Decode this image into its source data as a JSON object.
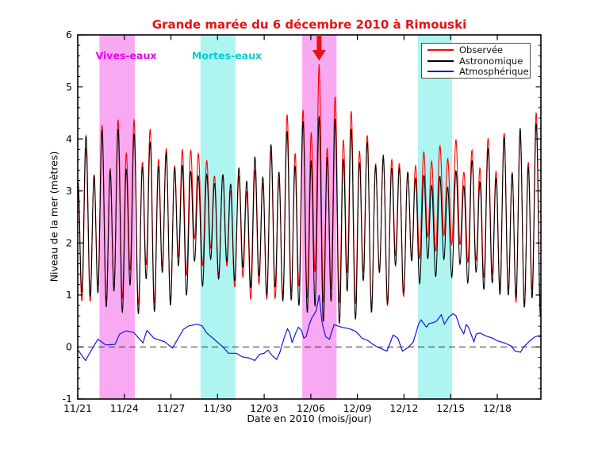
{
  "figure": {
    "title": "Grande marée du 6 décembre 2010 à Rimouski",
    "title_color": "#e81212"
  },
  "chart_data": {
    "type": "line",
    "title": "Grande marée du 6 décembre 2010 à Rimouski",
    "xlabel": "Date en 2010 (mois/jour)",
    "ylabel": "Niveau de la mer (mètres)",
    "ylim": [
      -1,
      6
    ],
    "xlim_days_from_nov21": [
      0,
      29.81
    ],
    "grid": "off",
    "legend_position": "top-right",
    "legend": [
      {
        "name": "Observée",
        "color": "#ff0000"
      },
      {
        "name": "Astronomique",
        "color": "#000000"
      },
      {
        "name": "Atmosphérique",
        "color": "#1414e0"
      }
    ],
    "x_major_ticks": [
      {
        "label": "11/21",
        "day": 0
      },
      {
        "label": "11/24",
        "day": 3
      },
      {
        "label": "11/27",
        "day": 6
      },
      {
        "label": "11/30",
        "day": 9
      },
      {
        "label": "12/03",
        "day": 12
      },
      {
        "label": "12/06",
        "day": 15
      },
      {
        "label": "12/09",
        "day": 18
      },
      {
        "label": "12/12",
        "day": 21
      },
      {
        "label": "12/15",
        "day": 24
      },
      {
        "label": "12/18",
        "day": 27
      }
    ],
    "y_major_ticks": [
      {
        "label": "-1",
        "value": -1
      },
      {
        "label": "0",
        "value": 0
      },
      {
        "label": "1",
        "value": 1
      },
      {
        "label": "2",
        "value": 2
      },
      {
        "label": "3",
        "value": 3
      },
      {
        "label": "4",
        "value": 4
      },
      {
        "label": "5",
        "value": 5
      },
      {
        "label": "6",
        "value": 6
      }
    ],
    "y_minor_step": 0.2,
    "zero_line": {
      "value": 0,
      "style": "dashed",
      "color": "#333333"
    },
    "bands": {
      "spring_label": "Vives-eaux",
      "spring_text_color": "#e800e8",
      "spring_fill": "#f8a9f2",
      "spring_ranges_days": [
        [
          1.4,
          3.67
        ],
        [
          14.45,
          16.66
        ]
      ],
      "neap_label": "Mortes-eaux",
      "neap_text_color": "#00cdd1",
      "neap_fill": "#aef5f2",
      "neap_ranges_days": [
        [
          7.9,
          10.16
        ],
        [
          21.9,
          24.1
        ]
      ]
    },
    "event_marker": {
      "day": 15.54,
      "observed_max_m": 5.48,
      "arrow_color": "#e81212"
    },
    "observed_series_rule": "observed(t) = astronomical(t) + atmospheric(t)",
    "astronomical_tide_model": {
      "mean_level_m": 2.35,
      "m2_period_days": 0.5175,
      "m2_high_tide_phase_day": 0.015,
      "k1_period_days": 0.9973,
      "k1_high_phase_day": 0.53,
      "m2_amplitude_by_day": [
        1.25,
        1.35,
        1.45,
        1.44,
        1.4,
        1.32,
        1.2,
        1.05,
        0.93,
        0.85,
        0.9,
        1.03,
        1.18,
        1.35,
        1.52,
        1.65,
        1.7,
        1.62,
        1.47,
        1.32,
        1.17,
        1.02,
        0.9,
        0.82,
        0.85,
        0.95,
        1.1,
        1.25,
        1.4,
        1.52,
        1.58,
        1.6
      ],
      "k1_amplitude_by_day": [
        0.4,
        0.42,
        0.44,
        0.45,
        0.43,
        0.4,
        0.36,
        0.31,
        0.26,
        0.21,
        0.2,
        0.24,
        0.29,
        0.34,
        0.39,
        0.42,
        0.44,
        0.45,
        0.43,
        0.39,
        0.34,
        0.29,
        0.24,
        0.2,
        0.2,
        0.25,
        0.3,
        0.35,
        0.39,
        0.42,
        0.44,
        0.45
      ],
      "sample_step_days": 0.02
    },
    "atmospheric_surge_points": {
      "t_days": [
        0.0,
        0.5,
        0.9,
        1.3,
        1.8,
        2.4,
        2.7,
        3.1,
        3.6,
        4.2,
        4.45,
        4.9,
        5.6,
        6.1,
        6.8,
        7.1,
        7.65,
        8.0,
        8.3,
        8.7,
        9.0,
        9.35,
        9.7,
        10.2,
        10.6,
        11.0,
        11.4,
        11.7,
        12.0,
        12.25,
        12.5,
        12.8,
        13.0,
        13.3,
        13.5,
        13.65,
        13.8,
        14.0,
        14.2,
        14.4,
        14.55,
        14.7,
        14.9,
        15.05,
        15.2,
        15.35,
        15.54,
        15.72,
        15.95,
        16.2,
        16.5,
        17.0,
        17.5,
        17.9,
        18.3,
        18.7,
        19.0,
        19.3,
        19.9,
        20.3,
        20.6,
        20.9,
        21.3,
        21.6,
        21.95,
        22.1,
        22.45,
        22.6,
        22.9,
        23.1,
        23.4,
        23.6,
        23.9,
        24.15,
        24.35,
        24.6,
        24.85,
        25.0,
        25.15,
        25.5,
        25.65,
        25.9,
        26.2,
        26.4,
        26.7,
        27.0,
        27.45,
        27.9,
        28.15,
        28.5,
        28.7,
        29.1,
        29.45,
        29.75,
        30.1
      ],
      "values_m": [
        -0.05,
        -0.26,
        -0.05,
        0.15,
        0.04,
        0.05,
        0.25,
        0.31,
        0.28,
        0.08,
        0.32,
        0.17,
        0.1,
        -0.02,
        0.34,
        0.4,
        0.44,
        0.41,
        0.27,
        0.17,
        0.09,
        0.0,
        -0.12,
        -0.12,
        -0.19,
        -0.21,
        -0.26,
        -0.14,
        -0.12,
        -0.06,
        -0.16,
        -0.24,
        -0.11,
        0.19,
        0.35,
        0.27,
        0.08,
        0.25,
        0.38,
        0.32,
        0.17,
        0.2,
        0.43,
        0.55,
        0.62,
        0.7,
        1.0,
        0.48,
        0.2,
        0.15,
        0.43,
        0.38,
        0.35,
        0.3,
        0.17,
        0.12,
        0.05,
        0.0,
        -0.08,
        0.23,
        0.17,
        -0.08,
        0.0,
        0.1,
        0.45,
        0.52,
        0.38,
        0.45,
        0.47,
        0.5,
        0.62,
        0.44,
        0.58,
        0.64,
        0.6,
        0.38,
        0.25,
        0.43,
        0.38,
        0.1,
        0.25,
        0.27,
        0.22,
        0.2,
        0.17,
        0.12,
        0.08,
        0.02,
        -0.08,
        -0.1,
        0.0,
        0.12,
        0.2,
        0.22,
        0.28
      ]
    }
  }
}
